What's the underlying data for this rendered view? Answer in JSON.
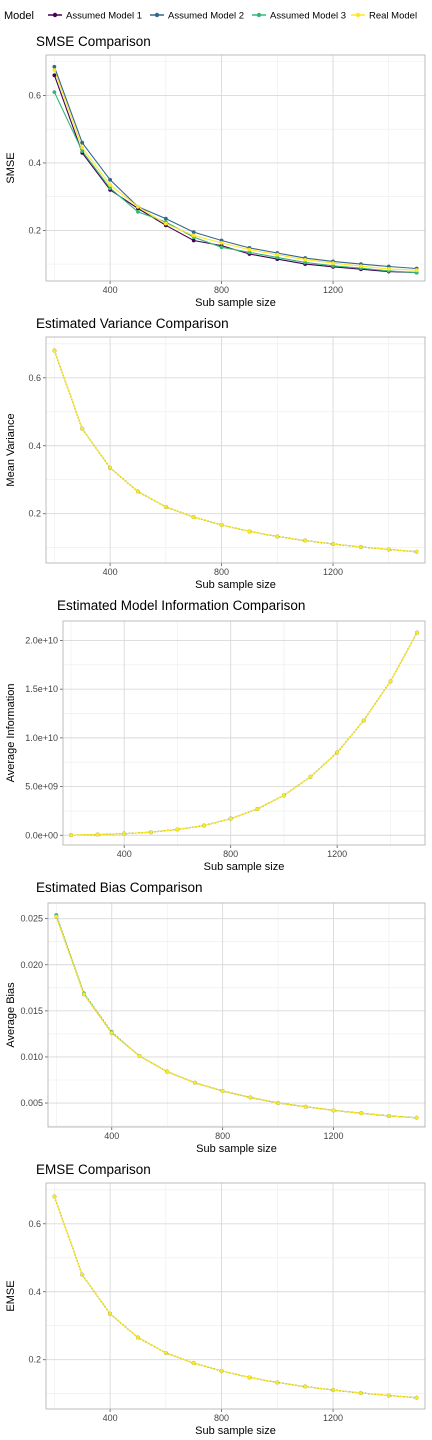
{
  "legend": {
    "title": "Model",
    "entries": [
      {
        "label": "Assumed Model 1",
        "color": "#440154"
      },
      {
        "label": "Assumed Model 2",
        "color": "#31688E"
      },
      {
        "label": "Assumed Model 3",
        "color": "#35B779"
      },
      {
        "label": "Real Model",
        "color": "#FDE725"
      }
    ]
  },
  "chart_data": [
    {
      "type": "line",
      "title": "SMSE Comparison",
      "xlabel": "Sub sample size",
      "ylabel": "SMSE",
      "xlim": [
        170,
        1530
      ],
      "ylim": [
        0.05,
        0.72
      ],
      "xticks": [
        400,
        800,
        1200
      ],
      "yticks": [
        0.2,
        0.4,
        0.6
      ],
      "ytick_labels": [
        "0.2",
        "0.4",
        "0.6"
      ],
      "x": [
        200,
        300,
        400,
        500,
        600,
        700,
        800,
        900,
        1000,
        1100,
        1200,
        1300,
        1400,
        1500
      ],
      "series": [
        {
          "name": "Assumed Model 1",
          "color": "#440154",
          "values": [
            0.66,
            0.43,
            0.32,
            0.265,
            0.215,
            0.17,
            0.155,
            0.13,
            0.115,
            0.1,
            0.092,
            0.085,
            0.078,
            0.075
          ]
        },
        {
          "name": "Assumed Model 2",
          "color": "#31688E",
          "values": [
            0.685,
            0.46,
            0.35,
            0.27,
            0.235,
            0.195,
            0.17,
            0.148,
            0.133,
            0.118,
            0.108,
            0.1,
            0.093,
            0.087
          ]
        },
        {
          "name": "Assumed Model 3",
          "color": "#35B779",
          "values": [
            0.61,
            0.435,
            0.325,
            0.255,
            0.225,
            0.18,
            0.15,
            0.135,
            0.12,
            0.105,
            0.095,
            0.088,
            0.08,
            0.075
          ]
        },
        {
          "name": "Real Model",
          "color": "#FDE725",
          "values": [
            0.675,
            0.445,
            0.335,
            0.27,
            0.22,
            0.185,
            0.163,
            0.143,
            0.128,
            0.113,
            0.103,
            0.094,
            0.086,
            0.082
          ]
        }
      ]
    },
    {
      "type": "line",
      "title": "Estimated Variance Comparison",
      "xlabel": "Sub sample size",
      "ylabel": "Mean Variance",
      "xlim": [
        170,
        1530
      ],
      "ylim": [
        0.055,
        0.72
      ],
      "xticks": [
        400,
        800,
        1200
      ],
      "yticks": [
        0.2,
        0.4,
        0.6
      ],
      "ytick_labels": [
        "0.2",
        "0.4",
        "0.6"
      ],
      "x": [
        200,
        300,
        400,
        500,
        600,
        700,
        800,
        900,
        1000,
        1100,
        1200,
        1300,
        1400,
        1500
      ],
      "series": [
        {
          "name": "Assumed Model 1",
          "color": "#440154",
          "values": [
            0.68,
            0.45,
            0.335,
            0.265,
            0.22,
            0.19,
            0.167,
            0.148,
            0.133,
            0.121,
            0.111,
            0.102,
            0.095,
            0.088
          ]
        },
        {
          "name": "Assumed Model 2",
          "color": "#31688E",
          "values": [
            0.68,
            0.45,
            0.335,
            0.265,
            0.22,
            0.19,
            0.167,
            0.148,
            0.133,
            0.121,
            0.111,
            0.102,
            0.095,
            0.088
          ]
        },
        {
          "name": "Assumed Model 3",
          "color": "#35B779",
          "values": [
            0.68,
            0.45,
            0.335,
            0.265,
            0.22,
            0.19,
            0.167,
            0.148,
            0.133,
            0.121,
            0.111,
            0.102,
            0.095,
            0.088
          ]
        },
        {
          "name": "Real Model",
          "color": "#FDE725",
          "values": [
            0.68,
            0.45,
            0.335,
            0.265,
            0.22,
            0.19,
            0.167,
            0.148,
            0.133,
            0.121,
            0.111,
            0.102,
            0.095,
            0.088
          ]
        }
      ]
    },
    {
      "type": "line",
      "title": "Estimated Model Information Comparison",
      "xlabel": "Sub sample size",
      "ylabel": "Average Information",
      "xlim": [
        170,
        1530
      ],
      "ylim": [
        -1000000000.0,
        22000000000.0
      ],
      "xticks": [
        400,
        800,
        1200
      ],
      "yticks": [
        0,
        5000000000.0,
        10000000000.0,
        15000000000.0,
        20000000000.0
      ],
      "ytick_labels": [
        "0.0e+00",
        "5.0e+09",
        "1.0e+10",
        "1.5e+10",
        "2.0e+10"
      ],
      "x": [
        200,
        300,
        400,
        500,
        600,
        700,
        800,
        900,
        1000,
        1100,
        1200,
        1300,
        1400,
        1500
      ],
      "series": [
        {
          "name": "Assumed Model 1",
          "color": "#440154",
          "values": [
            20000000.0,
            70000000.0,
            160000000.0,
            310000000.0,
            600000000.0,
            1000000000.0,
            1700000000.0,
            2700000000.0,
            4100000000.0,
            6000000000.0,
            8500000000.0,
            11800000000.0,
            15800000000.0,
            20800000000.0
          ]
        },
        {
          "name": "Assumed Model 2",
          "color": "#31688E",
          "values": [
            20000000.0,
            70000000.0,
            160000000.0,
            310000000.0,
            600000000.0,
            1000000000.0,
            1700000000.0,
            2700000000.0,
            4100000000.0,
            6000000000.0,
            8500000000.0,
            11800000000.0,
            15800000000.0,
            20800000000.0
          ]
        },
        {
          "name": "Assumed Model 3",
          "color": "#35B779",
          "values": [
            20000000.0,
            70000000.0,
            160000000.0,
            310000000.0,
            600000000.0,
            1000000000.0,
            1700000000.0,
            2700000000.0,
            4100000000.0,
            6000000000.0,
            8500000000.0,
            11800000000.0,
            15800000000.0,
            20800000000.0
          ]
        },
        {
          "name": "Real Model",
          "color": "#FDE725",
          "values": [
            20000000.0,
            70000000.0,
            160000000.0,
            310000000.0,
            600000000.0,
            1000000000.0,
            1700000000.0,
            2700000000.0,
            4100000000.0,
            6000000000.0,
            8500000000.0,
            11800000000.0,
            15800000000.0,
            20800000000.0
          ]
        }
      ]
    },
    {
      "type": "line",
      "title": "Estimated Bias Comparison",
      "xlabel": "Sub sample size",
      "ylabel": "Average Bias",
      "xlim": [
        170,
        1530
      ],
      "ylim": [
        0.0024,
        0.0267
      ],
      "xticks": [
        400,
        800,
        1200
      ],
      "yticks": [
        0.005,
        0.01,
        0.015,
        0.02,
        0.025
      ],
      "ytick_labels": [
        "0.005",
        "0.010",
        "0.015",
        "0.020",
        "0.025"
      ],
      "x": [
        200,
        300,
        400,
        500,
        600,
        700,
        800,
        900,
        1000,
        1100,
        1200,
        1300,
        1400,
        1500
      ],
      "series": [
        {
          "name": "Assumed Model 1",
          "color": "#440154",
          "values": [
            0.0252,
            0.0168,
            0.0126,
            0.0101,
            0.0084,
            0.0072,
            0.0063,
            0.0056,
            0.005,
            0.0046,
            0.0042,
            0.0039,
            0.0036,
            0.0034
          ]
        },
        {
          "name": "Assumed Model 2",
          "color": "#31688E",
          "values": [
            0.0253,
            0.0168,
            0.0126,
            0.0101,
            0.0084,
            0.0072,
            0.0063,
            0.0056,
            0.005,
            0.0046,
            0.0042,
            0.0039,
            0.0036,
            0.0034
          ]
        },
        {
          "name": "Assumed Model 3",
          "color": "#35B779",
          "values": [
            0.0254,
            0.0169,
            0.0127,
            0.0101,
            0.0084,
            0.0072,
            0.0063,
            0.0056,
            0.005,
            0.0046,
            0.0042,
            0.0039,
            0.0036,
            0.0034
          ]
        },
        {
          "name": "Real Model",
          "color": "#FDE725",
          "values": [
            0.0252,
            0.0168,
            0.0126,
            0.0101,
            0.0084,
            0.0072,
            0.0063,
            0.0056,
            0.005,
            0.0046,
            0.0042,
            0.0039,
            0.0036,
            0.0034
          ]
        }
      ]
    },
    {
      "type": "line",
      "title": "EMSE Comparison",
      "xlabel": "Sub sample size",
      "ylabel": "EMSE",
      "xlim": [
        170,
        1530
      ],
      "ylim": [
        0.055,
        0.72
      ],
      "xticks": [
        400,
        800,
        1200
      ],
      "yticks": [
        0.2,
        0.4,
        0.6
      ],
      "ytick_labels": [
        "0.2",
        "0.4",
        "0.6"
      ],
      "x": [
        200,
        300,
        400,
        500,
        600,
        700,
        800,
        900,
        1000,
        1100,
        1200,
        1300,
        1400,
        1500
      ],
      "series": [
        {
          "name": "Assumed Model 1",
          "color": "#440154",
          "values": [
            0.68,
            0.45,
            0.335,
            0.265,
            0.22,
            0.19,
            0.167,
            0.148,
            0.133,
            0.121,
            0.111,
            0.102,
            0.095,
            0.088
          ]
        },
        {
          "name": "Assumed Model 2",
          "color": "#31688E",
          "values": [
            0.68,
            0.45,
            0.335,
            0.265,
            0.22,
            0.19,
            0.167,
            0.148,
            0.133,
            0.121,
            0.111,
            0.102,
            0.095,
            0.088
          ]
        },
        {
          "name": "Assumed Model 3",
          "color": "#35B779",
          "values": [
            0.68,
            0.45,
            0.335,
            0.265,
            0.22,
            0.19,
            0.167,
            0.148,
            0.133,
            0.121,
            0.111,
            0.102,
            0.095,
            0.088
          ]
        },
        {
          "name": "Real Model",
          "color": "#FDE725",
          "values": [
            0.68,
            0.45,
            0.335,
            0.265,
            0.22,
            0.19,
            0.167,
            0.148,
            0.133,
            0.121,
            0.111,
            0.102,
            0.095,
            0.088
          ]
        }
      ]
    }
  ]
}
